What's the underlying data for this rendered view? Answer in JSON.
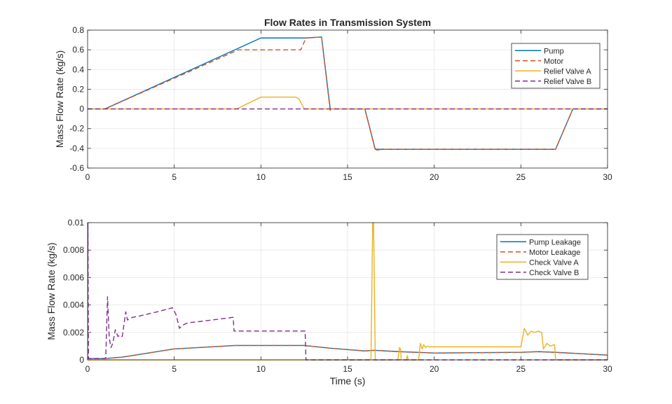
{
  "chart_data": [
    {
      "type": "line",
      "title": "Flow Rates in Transmission System",
      "xlabel": "",
      "ylabel": "Mass Flow Rate (kg/s)",
      "xlim": [
        0,
        30
      ],
      "ylim": [
        -0.6,
        0.8
      ],
      "xticks": [
        0,
        5,
        10,
        15,
        20,
        25,
        30
      ],
      "xtick_labels": [
        "0",
        "5",
        "10",
        "15",
        "20",
        "25",
        "30"
      ],
      "yticks": [
        -0.6,
        -0.4,
        -0.2,
        0,
        0.2,
        0.4,
        0.6,
        0.8
      ],
      "ytick_labels": [
        "-0.6",
        "-0.4",
        "-0.2",
        "0",
        "0.2",
        "0.4",
        "0.6",
        "0.8"
      ],
      "grid": true,
      "legend_position": "top-right",
      "series": [
        {
          "name": "Pump",
          "color": "#0072BD",
          "dash": "solid",
          "x": [
            0,
            1,
            10,
            12.6,
            13.5,
            14,
            14.05,
            16,
            16.6,
            17,
            27,
            28,
            30
          ],
          "y": [
            0,
            0,
            0.72,
            0.72,
            0.73,
            0,
            0,
            0,
            -0.41,
            -0.41,
            -0.41,
            0,
            0
          ]
        },
        {
          "name": "Motor",
          "color": "#D95319",
          "dash": "dashed",
          "x": [
            0,
            1,
            8.7,
            12.3,
            12.6,
            13.5,
            14,
            14.05,
            16,
            16.6,
            17,
            27,
            28,
            30
          ],
          "y": [
            0,
            0,
            0.6,
            0.6,
            0.72,
            0.73,
            -0.02,
            0,
            0,
            -0.42,
            -0.41,
            -0.41,
            0,
            0
          ]
        },
        {
          "name": "Relief Valve A",
          "color": "#EDB120",
          "dash": "solid",
          "x": [
            0,
            8.6,
            10,
            12,
            12.2,
            12.5,
            30
          ],
          "y": [
            0,
            0,
            0.12,
            0.12,
            0.1,
            0,
            0
          ]
        },
        {
          "name": "Relief Valve B",
          "color": "#7E2F8E",
          "dash": "dashed",
          "x": [
            0,
            30
          ],
          "y": [
            0,
            0
          ]
        }
      ]
    },
    {
      "type": "line",
      "title": "",
      "xlabel": "Time (s)",
      "ylabel": "Mass Flow Rate (kg/s)",
      "xlim": [
        0,
        30
      ],
      "ylim": [
        0,
        0.01
      ],
      "xticks": [
        0,
        5,
        10,
        15,
        20,
        25,
        30
      ],
      "xtick_labels": [
        "0",
        "5",
        "10",
        "15",
        "20",
        "25",
        "30"
      ],
      "yticks": [
        0,
        0.002,
        0.004,
        0.006,
        0.008,
        0.01
      ],
      "ytick_labels": [
        "0",
        "0.002",
        "0.004",
        "0.006",
        "0.008",
        "0.01"
      ],
      "grid": true,
      "legend_position": "top-right",
      "series": [
        {
          "name": "Pump Leakage",
          "color": "#0072BD",
          "dash": "solid",
          "x": [
            0,
            1,
            2,
            5,
            8.5,
            12.5,
            14,
            16,
            16.5,
            18,
            20,
            25,
            26,
            27,
            30
          ],
          "y": [
            0.0001,
            0.0001,
            0.0002,
            0.0008,
            0.00105,
            0.00105,
            0.00085,
            0.00065,
            0.0007,
            0.0006,
            0.0005,
            0.00055,
            0.0006,
            0.00055,
            0.00035
          ]
        },
        {
          "name": "Motor Leakage",
          "color": "#D95319",
          "dash": "dashed",
          "x": [
            0,
            1,
            2,
            5,
            8.5,
            12.5,
            14,
            16,
            16.5,
            18,
            20,
            25,
            26,
            27,
            30
          ],
          "y": [
            0.0001,
            0.0001,
            0.0002,
            0.0008,
            0.00105,
            0.00105,
            0.00085,
            0.00065,
            0.0007,
            0.0006,
            0.0005,
            0.00055,
            0.0006,
            0.00055,
            0.00035
          ]
        },
        {
          "name": "Check Valve A",
          "color": "#EDB120",
          "dash": "solid",
          "x": [
            0,
            16.35,
            16.4,
            16.45,
            16.5,
            16.55,
            16.6,
            17.9,
            18,
            18.05,
            18.1,
            18.4,
            18.45,
            18.5,
            19.1,
            19.2,
            19.3,
            19.4,
            19.5,
            19.6,
            19.7,
            25,
            25.2,
            25.4,
            25.6,
            25.8,
            26,
            26.2,
            26.3,
            26.5,
            26.7,
            26.9,
            26.95,
            27,
            30
          ],
          "y": [
            0,
            0,
            0.005,
            0.01,
            0.01,
            0.005,
            0,
            0,
            0.0009,
            0.0008,
            0,
            0,
            0.0003,
            0,
            0,
            0.0012,
            0.0008,
            0.0011,
            0.0009,
            0.001,
            0.00095,
            0.00095,
            0.0023,
            0.0018,
            0.0021,
            0.002,
            0.0021,
            0.002,
            0.0008,
            0.0012,
            0.001,
            0.0011,
            0.0011,
            0,
            0
          ]
        },
        {
          "name": "Check Valve B",
          "color": "#7E2F8E",
          "dash": "dashed",
          "x": [
            0,
            0.02,
            0.05,
            1.0,
            1.05,
            1.15,
            1.25,
            1.35,
            1.45,
            1.6,
            1.75,
            1.85,
            2.0,
            2.2,
            2.3,
            2.4,
            2.6,
            3,
            4,
            4.9,
            5.1,
            5.3,
            5.45,
            5.6,
            5.8,
            6.5,
            8.4,
            8.45,
            12.5,
            12.55,
            12.6,
            30
          ],
          "y": [
            0.0001,
            0.01,
            0.0001,
            0.0001,
            0.0002,
            0.0046,
            0.0016,
            0.0009,
            0.0012,
            0.0022,
            0.0017,
            0.0018,
            0.0017,
            0.0035,
            0.0029,
            0.003,
            0.0031,
            0.0032,
            0.0035,
            0.0038,
            0.0033,
            0.0023,
            0.0025,
            0.0026,
            0.0027,
            0.0028,
            0.0031,
            0.0021,
            0.0021,
            0.0021,
            0,
            0
          ]
        }
      ]
    }
  ]
}
